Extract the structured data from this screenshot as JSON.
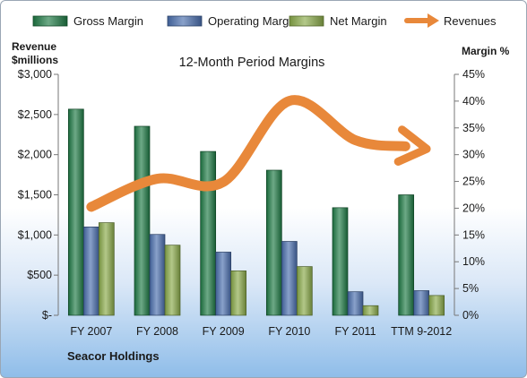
{
  "chart_data": {
    "type": "bar",
    "title": "12-Month Period Margins",
    "left_axis_title_line1": "Revenue",
    "left_axis_title_line2": "$millions",
    "right_axis_title": "Margin %",
    "footer": "Seacor Holdings",
    "categories": [
      "FY 2007",
      "FY 2008",
      "FY 2009",
      "FY 2010",
      "FY 2011",
      "TTM 9-2012"
    ],
    "left_ticks": [
      "$-",
      "$500",
      "$1,000",
      "$1,500",
      "$2,000",
      "$2,500",
      "$3,000"
    ],
    "right_ticks": [
      "0%",
      "5%",
      "10%",
      "15%",
      "20%",
      "25%",
      "30%",
      "35%",
      "40%",
      "45%"
    ],
    "left_ylim": [
      0,
      3000
    ],
    "right_ylim": [
      0,
      45
    ],
    "legend_position": "top",
    "bar_series": [
      {
        "name": "Gross Margin",
        "color": "#1f7a45",
        "values": [
          38.5,
          35.3,
          30.6,
          27.1,
          20.1,
          22.5
        ]
      },
      {
        "name": "Operating Margin",
        "color": "#4a6fae",
        "values": [
          16.5,
          15.1,
          11.8,
          13.8,
          4.4,
          4.6
        ]
      },
      {
        "name": "Net Margin",
        "color": "#8aaa4a",
        "values": [
          17.3,
          13.1,
          8.3,
          9.1,
          1.8,
          3.7
        ]
      }
    ],
    "line_series": {
      "name": "Revenues",
      "color": "#e8883a",
      "values": [
        1350,
        1700,
        1660,
        2670,
        2180,
        2080
      ]
    }
  }
}
